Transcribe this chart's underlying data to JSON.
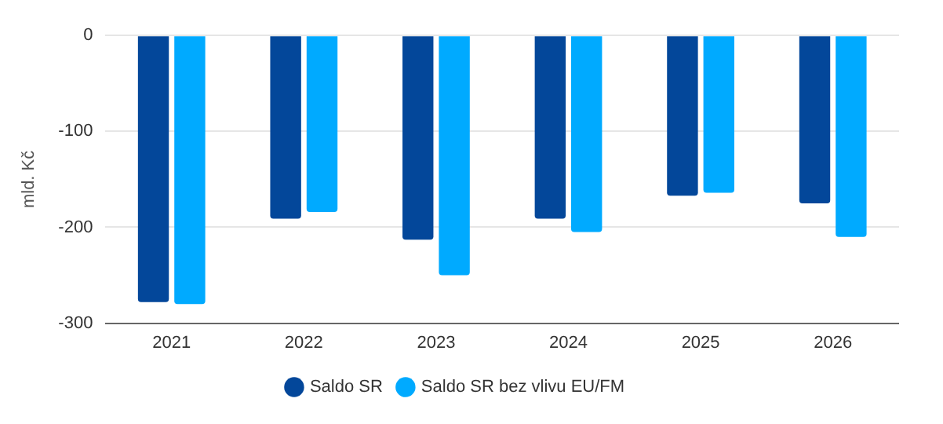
{
  "chart_data": {
    "type": "bar",
    "ylabel": "mld. Kč",
    "categories": [
      "2021",
      "2022",
      "2023",
      "2024",
      "2025",
      "2026"
    ],
    "series": [
      {
        "name": "Saldo SR",
        "color": "#03479a",
        "values": [
          -278,
          -191,
          -213,
          -191,
          -167,
          -175
        ]
      },
      {
        "name": "Saldo SR bez vlivu EU/FM",
        "color": "#00aaff",
        "values": [
          -280,
          -184,
          -250,
          -205,
          -164,
          -210
        ]
      }
    ],
    "ylim": [
      -300,
      0
    ],
    "yticks": [
      -300,
      -200,
      -100,
      0
    ],
    "grid": "y",
    "legend": "bottom"
  }
}
